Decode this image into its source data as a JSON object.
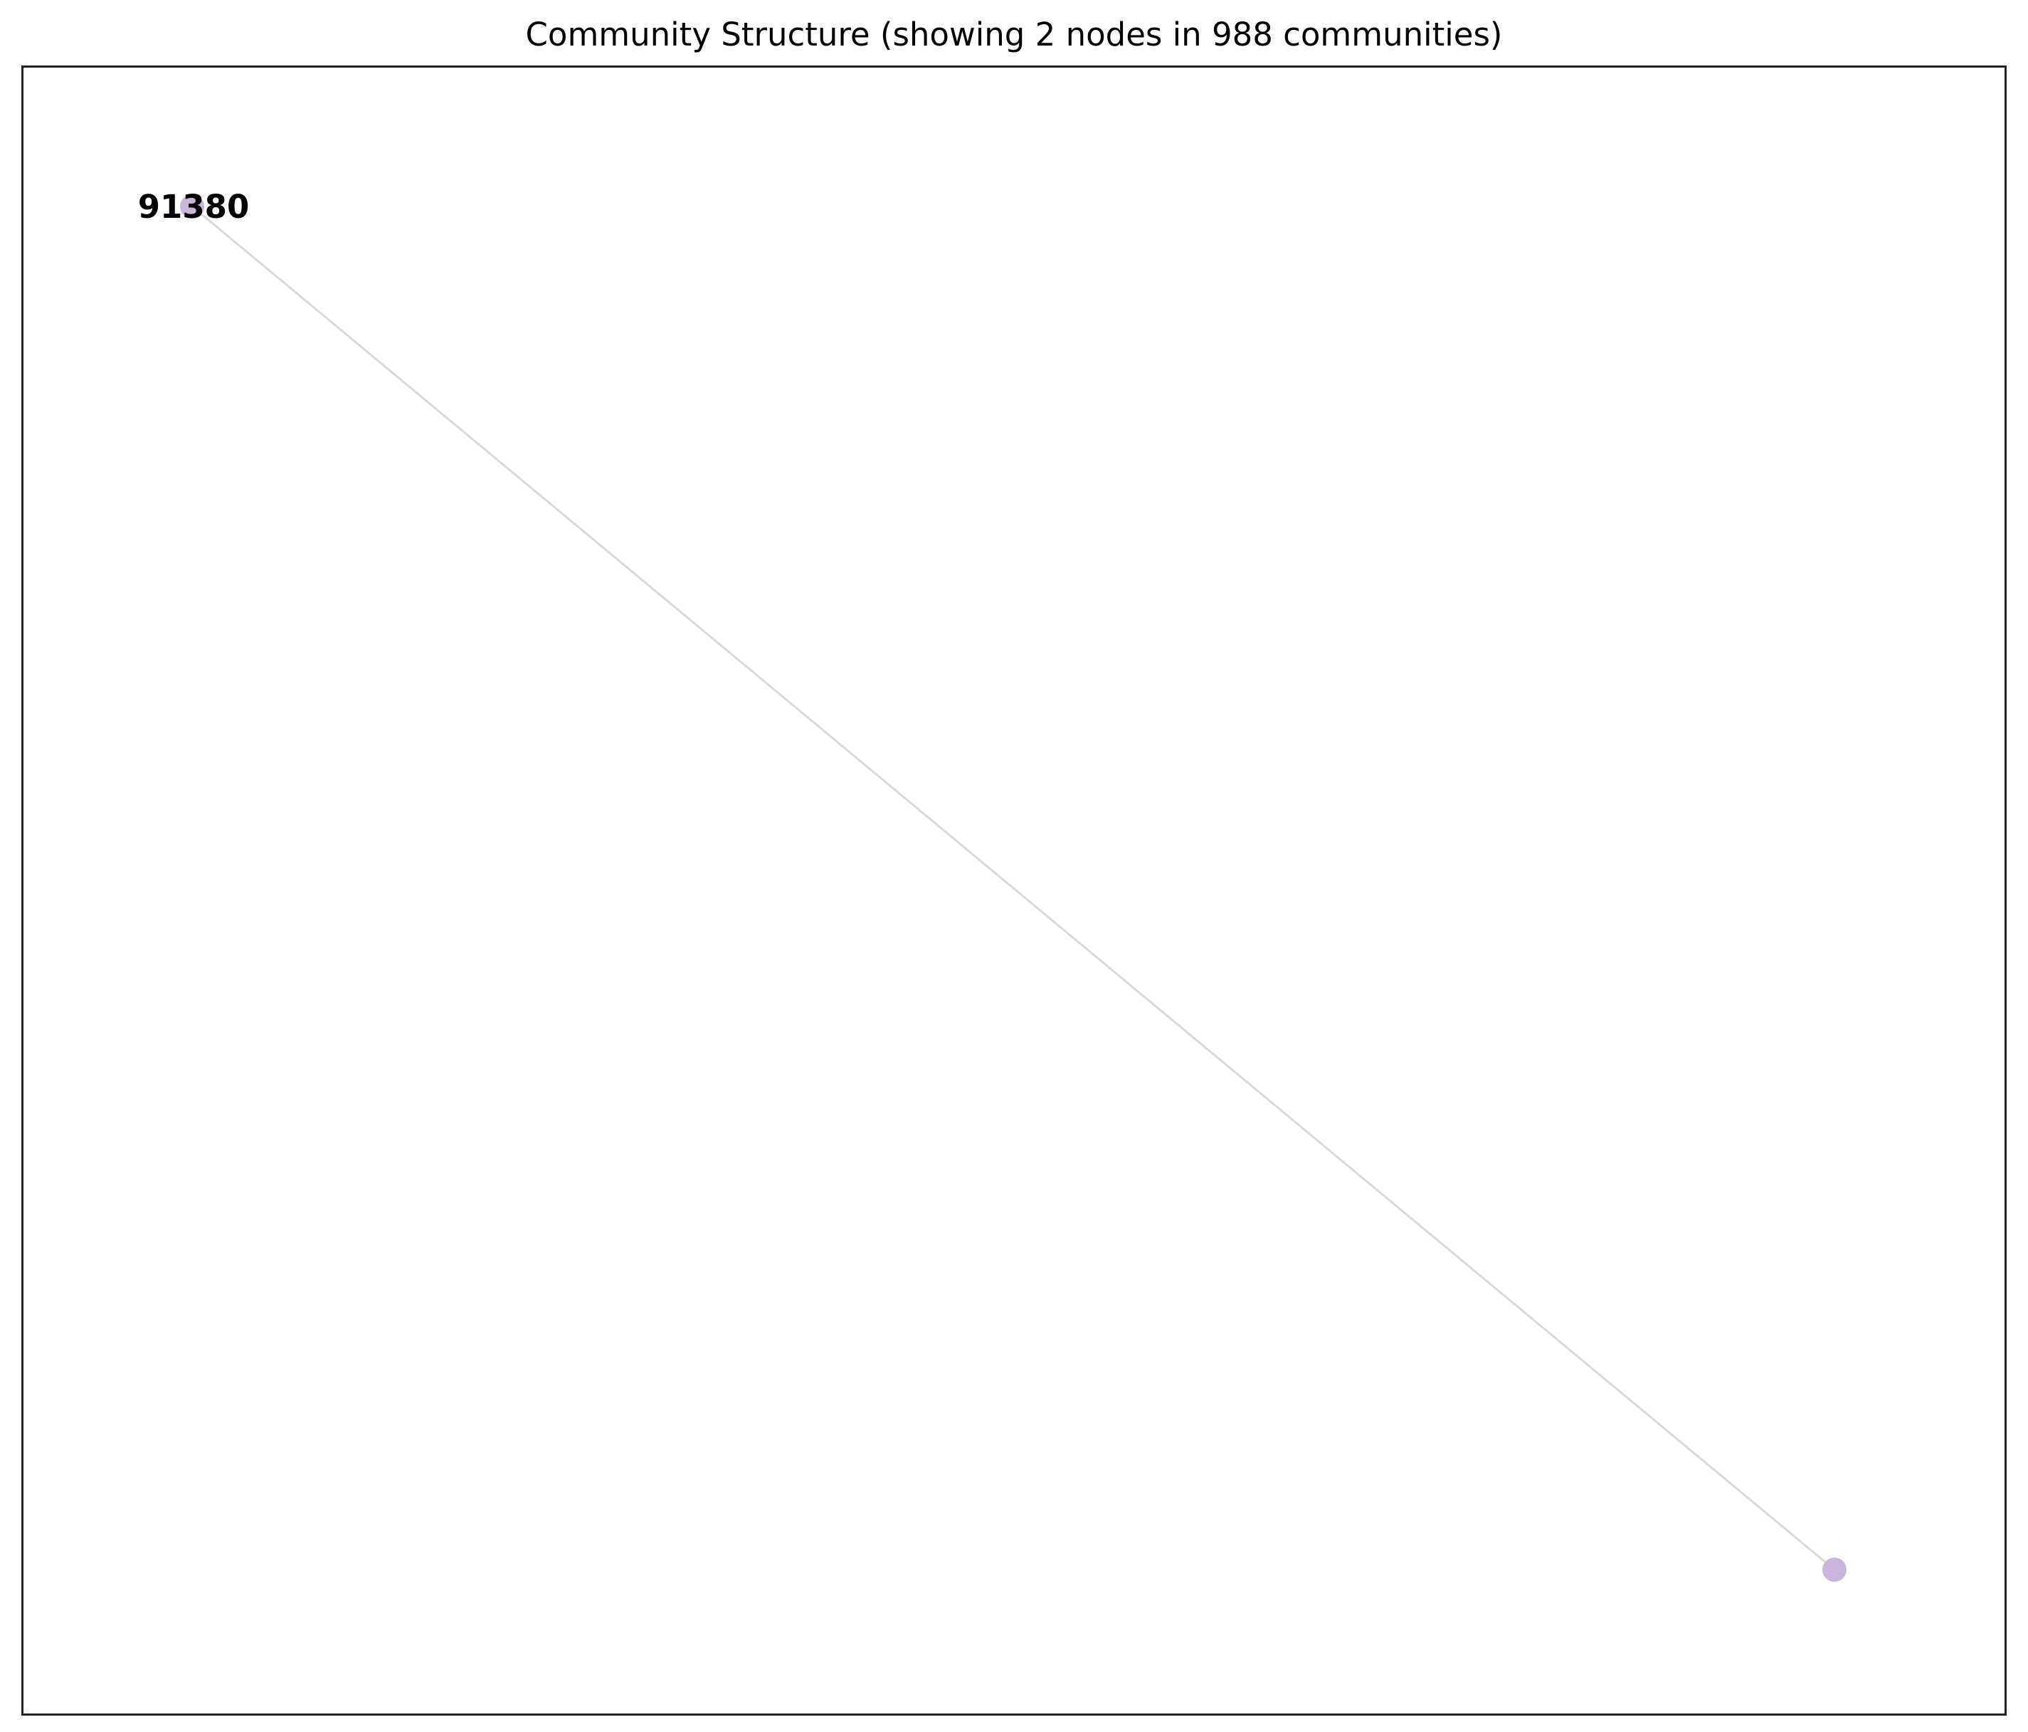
{
  "title": "Community Structure (showing 2 nodes in 988 communities)",
  "graph": {
    "nodes": [
      {
        "id": "n1",
        "label": "91380",
        "color": "#c7b2d9"
      },
      {
        "id": "n2",
        "label": "",
        "color": "#c7b2d9"
      }
    ],
    "edges": [
      {
        "source": "n1",
        "target": "n2",
        "color": "#d9d9d9"
      }
    ]
  }
}
